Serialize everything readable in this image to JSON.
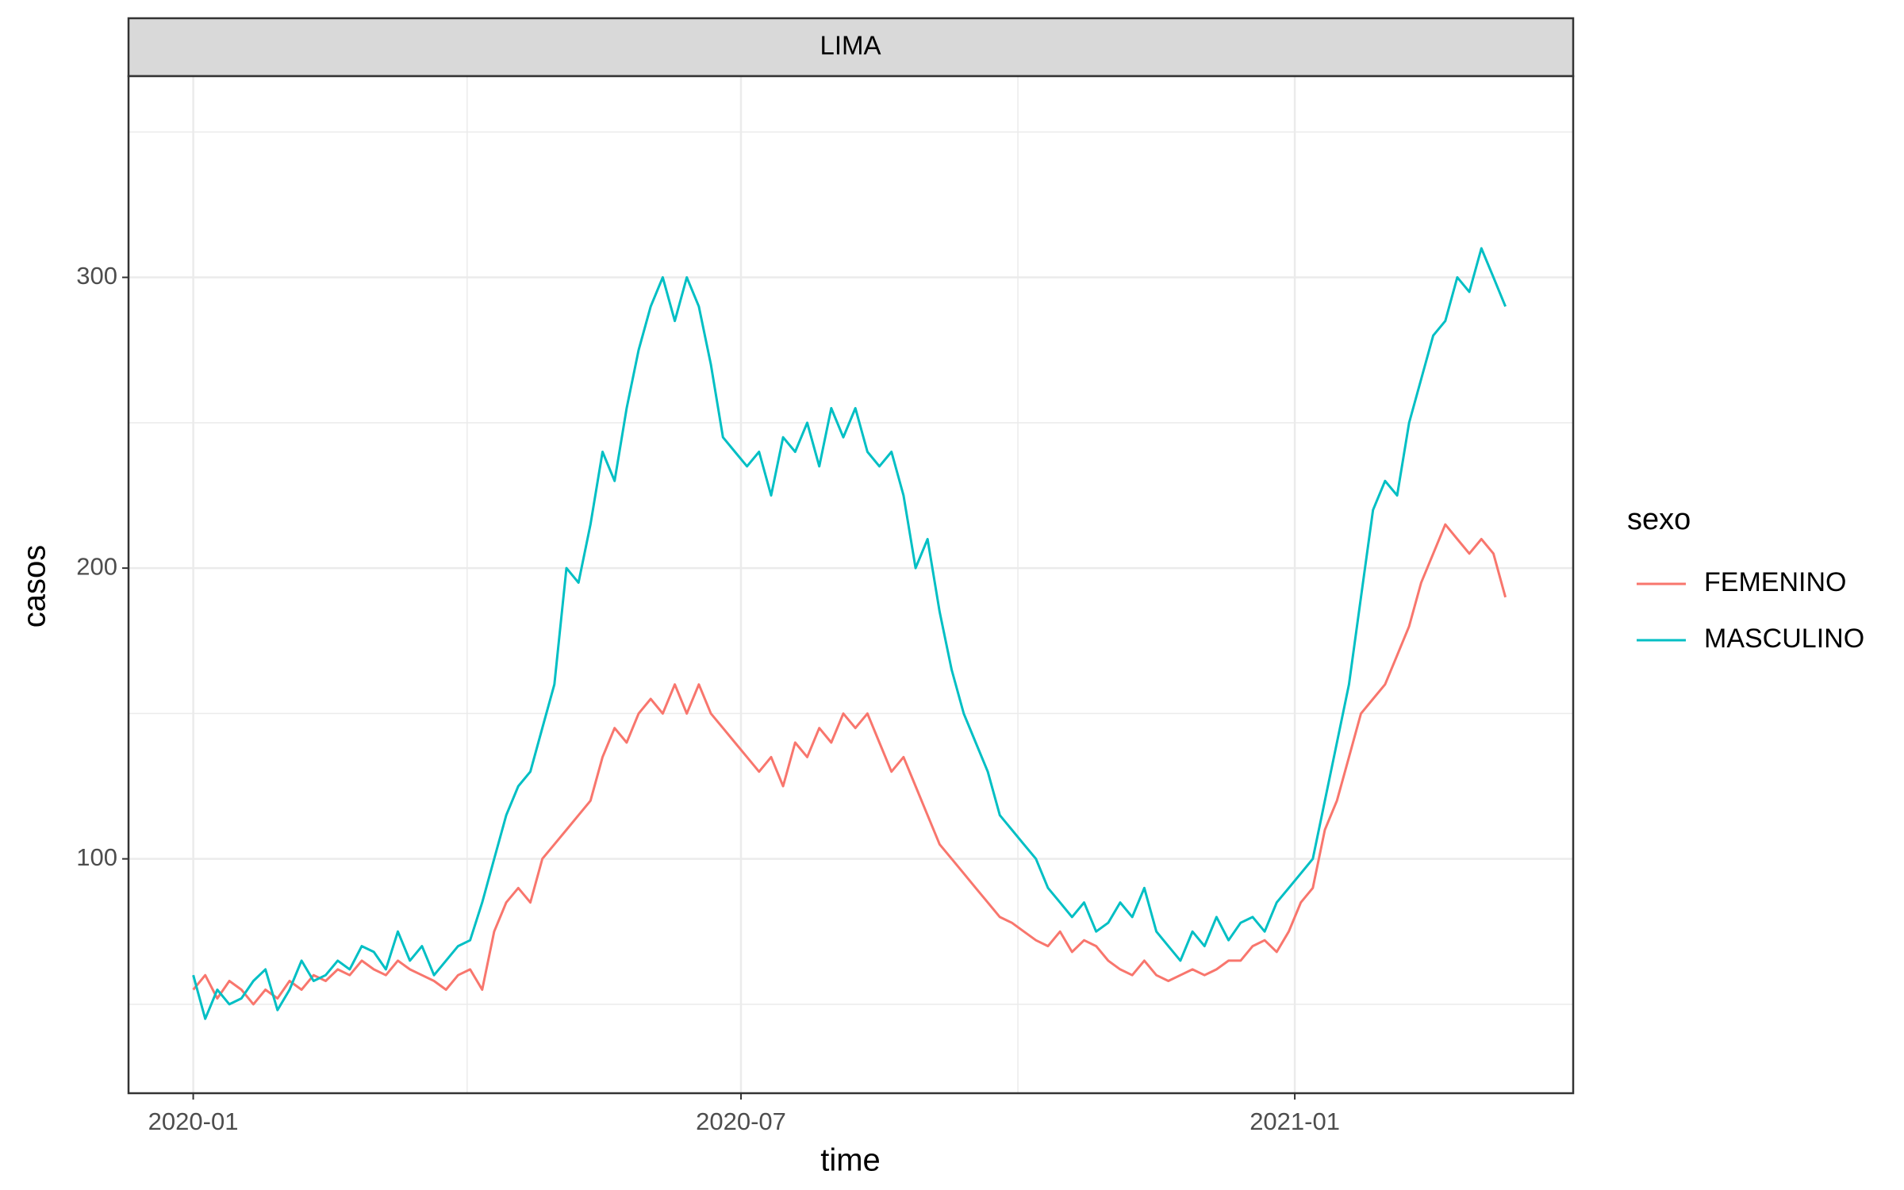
{
  "chart_data": {
    "type": "line",
    "panel_title": "LIMA",
    "xlabel": "time",
    "ylabel": "casos",
    "legend_title": "sexo",
    "x": [
      0,
      4,
      8,
      12,
      16,
      20,
      24,
      28,
      32,
      36,
      40,
      44,
      48,
      52,
      56,
      60,
      64,
      68,
      72,
      76,
      80,
      84,
      88,
      92,
      96,
      100,
      104,
      108,
      112,
      116,
      120,
      124,
      128,
      132,
      136,
      140,
      144,
      148,
      152,
      156,
      160,
      164,
      168,
      172,
      176,
      180,
      184,
      188,
      192,
      196,
      200,
      204,
      208,
      212,
      216,
      220,
      224,
      228,
      232,
      236,
      240,
      244,
      248,
      252,
      256,
      260,
      264,
      268,
      272,
      276,
      280,
      284,
      288,
      292,
      296,
      300,
      304,
      308,
      312,
      316,
      320,
      324,
      328,
      332,
      336,
      340,
      344,
      348,
      352,
      356,
      360,
      364,
      368,
      372,
      376,
      380,
      384,
      388,
      392,
      396,
      400,
      404,
      408,
      412,
      416,
      420,
      424,
      428,
      432,
      436
    ],
    "series": [
      {
        "name": "FEMENINO",
        "color": "#F8766D",
        "values": [
          55,
          60,
          52,
          58,
          55,
          50,
          55,
          52,
          58,
          55,
          60,
          58,
          62,
          60,
          65,
          62,
          60,
          65,
          62,
          60,
          58,
          55,
          60,
          62,
          55,
          75,
          85,
          90,
          85,
          100,
          105,
          110,
          115,
          120,
          135,
          145,
          140,
          150,
          155,
          150,
          160,
          150,
          160,
          150,
          145,
          140,
          135,
          130,
          135,
          125,
          140,
          135,
          145,
          140,
          150,
          145,
          150,
          140,
          130,
          135,
          125,
          115,
          105,
          100,
          95,
          90,
          85,
          80,
          78,
          75,
          72,
          70,
          75,
          68,
          72,
          70,
          65,
          62,
          60,
          65,
          60,
          58,
          60,
          62,
          60,
          62,
          65,
          65,
          70,
          72,
          68,
          75,
          85,
          90,
          110,
          120,
          135,
          150,
          155,
          160,
          170,
          180,
          195,
          205,
          215,
          210,
          205,
          210,
          205,
          190
        ]
      },
      {
        "name": "MASCULINO",
        "color": "#00BFC4",
        "values": [
          60,
          45,
          55,
          50,
          52,
          58,
          62,
          48,
          55,
          65,
          58,
          60,
          65,
          62,
          70,
          68,
          62,
          75,
          65,
          70,
          60,
          65,
          70,
          72,
          85,
          100,
          115,
          125,
          130,
          145,
          160,
          200,
          195,
          215,
          240,
          230,
          255,
          275,
          290,
          300,
          285,
          300,
          290,
          270,
          245,
          240,
          235,
          240,
          225,
          245,
          240,
          250,
          235,
          255,
          245,
          255,
          240,
          235,
          240,
          225,
          200,
          210,
          185,
          165,
          150,
          140,
          130,
          115,
          110,
          105,
          100,
          90,
          85,
          80,
          85,
          75,
          78,
          85,
          80,
          90,
          75,
          70,
          65,
          75,
          70,
          80,
          72,
          78,
          80,
          75,
          85,
          90,
          95,
          100,
          120,
          140,
          160,
          190,
          220,
          230,
          225,
          250,
          265,
          280,
          285,
          300,
          295,
          310,
          300,
          290
        ]
      }
    ],
    "xlim": [
      -21.5,
      458.5
    ],
    "xticks": [
      {
        "value": 0,
        "label": "2020-01"
      },
      {
        "value": 182,
        "label": "2020-07"
      },
      {
        "value": 366,
        "label": "2021-01"
      }
    ],
    "xminorticks": [
      91,
      274
    ],
    "ylim": [
      19.4,
      369.2
    ],
    "yticks": [
      100,
      200,
      300
    ],
    "yminorticks": [
      50,
      150,
      250,
      350
    ],
    "grid": true
  }
}
